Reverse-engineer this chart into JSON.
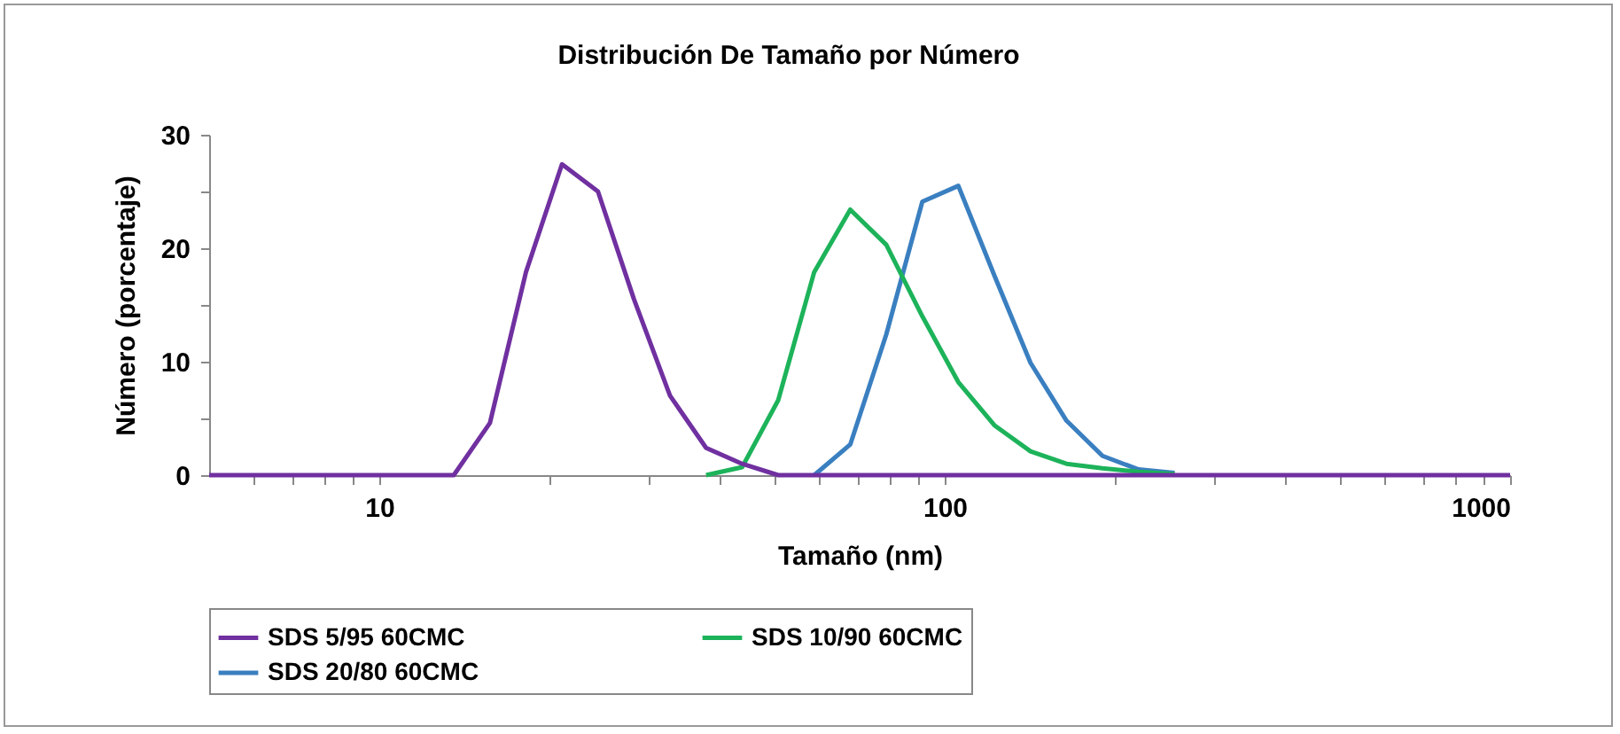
{
  "chart_data": {
    "type": "line",
    "title": "Distribución De Tamaño por Número",
    "xlabel": "Tamaño (nm)",
    "ylabel": "Número (porcentaje)",
    "x": [
      5,
      13.54,
      15.69,
      18.17,
      21.04,
      24.36,
      28.21,
      32.67,
      37.84,
      43.82,
      50.75,
      58.77,
      68.06,
      78.82,
      91.28,
      105.7,
      122.4,
      141.8,
      164.2,
      190.1,
      220.2,
      255,
      295.3,
      1000
    ],
    "series": [
      {
        "name": "SDS 5/95 60CMC",
        "color": "#7030a0",
        "values": [
          0,
          0,
          4.6,
          17.9,
          27.4,
          25,
          15.5,
          7,
          2.4,
          1,
          0,
          0,
          0,
          0,
          0,
          0,
          0,
          0,
          0,
          0,
          0,
          0,
          0,
          0
        ]
      },
      {
        "name": "SDS 10/90 60CMC",
        "color": "#1db35a",
        "values": [
          null,
          null,
          null,
          null,
          null,
          null,
          null,
          null,
          0,
          0.7,
          6.6,
          17.9,
          23.4,
          20.3,
          14,
          8.2,
          4.4,
          2.1,
          1,
          0.6,
          0.3,
          0.1,
          null,
          null
        ]
      },
      {
        "name": "SDS 20/80 60CMC",
        "color": "#3a7fc0",
        "values": [
          null,
          null,
          null,
          null,
          null,
          null,
          null,
          null,
          null,
          null,
          null,
          0,
          2.7,
          12.4,
          24.1,
          25.5,
          17.6,
          9.9,
          4.8,
          1.7,
          0.5,
          0.2,
          null,
          null
        ]
      }
    ],
    "log": "x",
    "xlim": [
      5,
      1000
    ],
    "xticks": [
      {
        "value": 6,
        "label": null
      },
      {
        "value": 7,
        "label": null
      },
      {
        "value": 8,
        "label": null
      },
      {
        "value": 9,
        "label": null
      },
      10,
      {
        "value": 20,
        "label": null
      },
      {
        "value": 30,
        "label": null
      },
      {
        "value": 40,
        "label": null
      },
      {
        "value": 50,
        "label": null
      },
      {
        "value": 60,
        "label": null
      },
      {
        "value": 70,
        "label": null
      },
      {
        "value": 80,
        "label": null
      },
      {
        "value": 90,
        "label": null
      },
      100,
      {
        "value": 200,
        "label": null
      },
      {
        "value": 300,
        "label": null
      },
      {
        "value": 400,
        "label": null
      },
      {
        "value": 500,
        "label": null
      },
      {
        "value": 600,
        "label": null
      },
      {
        "value": 700,
        "label": null
      },
      {
        "value": 800,
        "label": null
      },
      {
        "value": 900,
        "label": null
      },
      1000
    ],
    "ylim": [
      0,
      30
    ],
    "yticks": [
      0,
      {
        "value": 5,
        "label": null
      },
      10,
      {
        "value": 15,
        "label": null
      },
      20,
      {
        "value": 25,
        "label": null
      },
      30
    ],
    "grid": false,
    "legend": "bottom"
  }
}
